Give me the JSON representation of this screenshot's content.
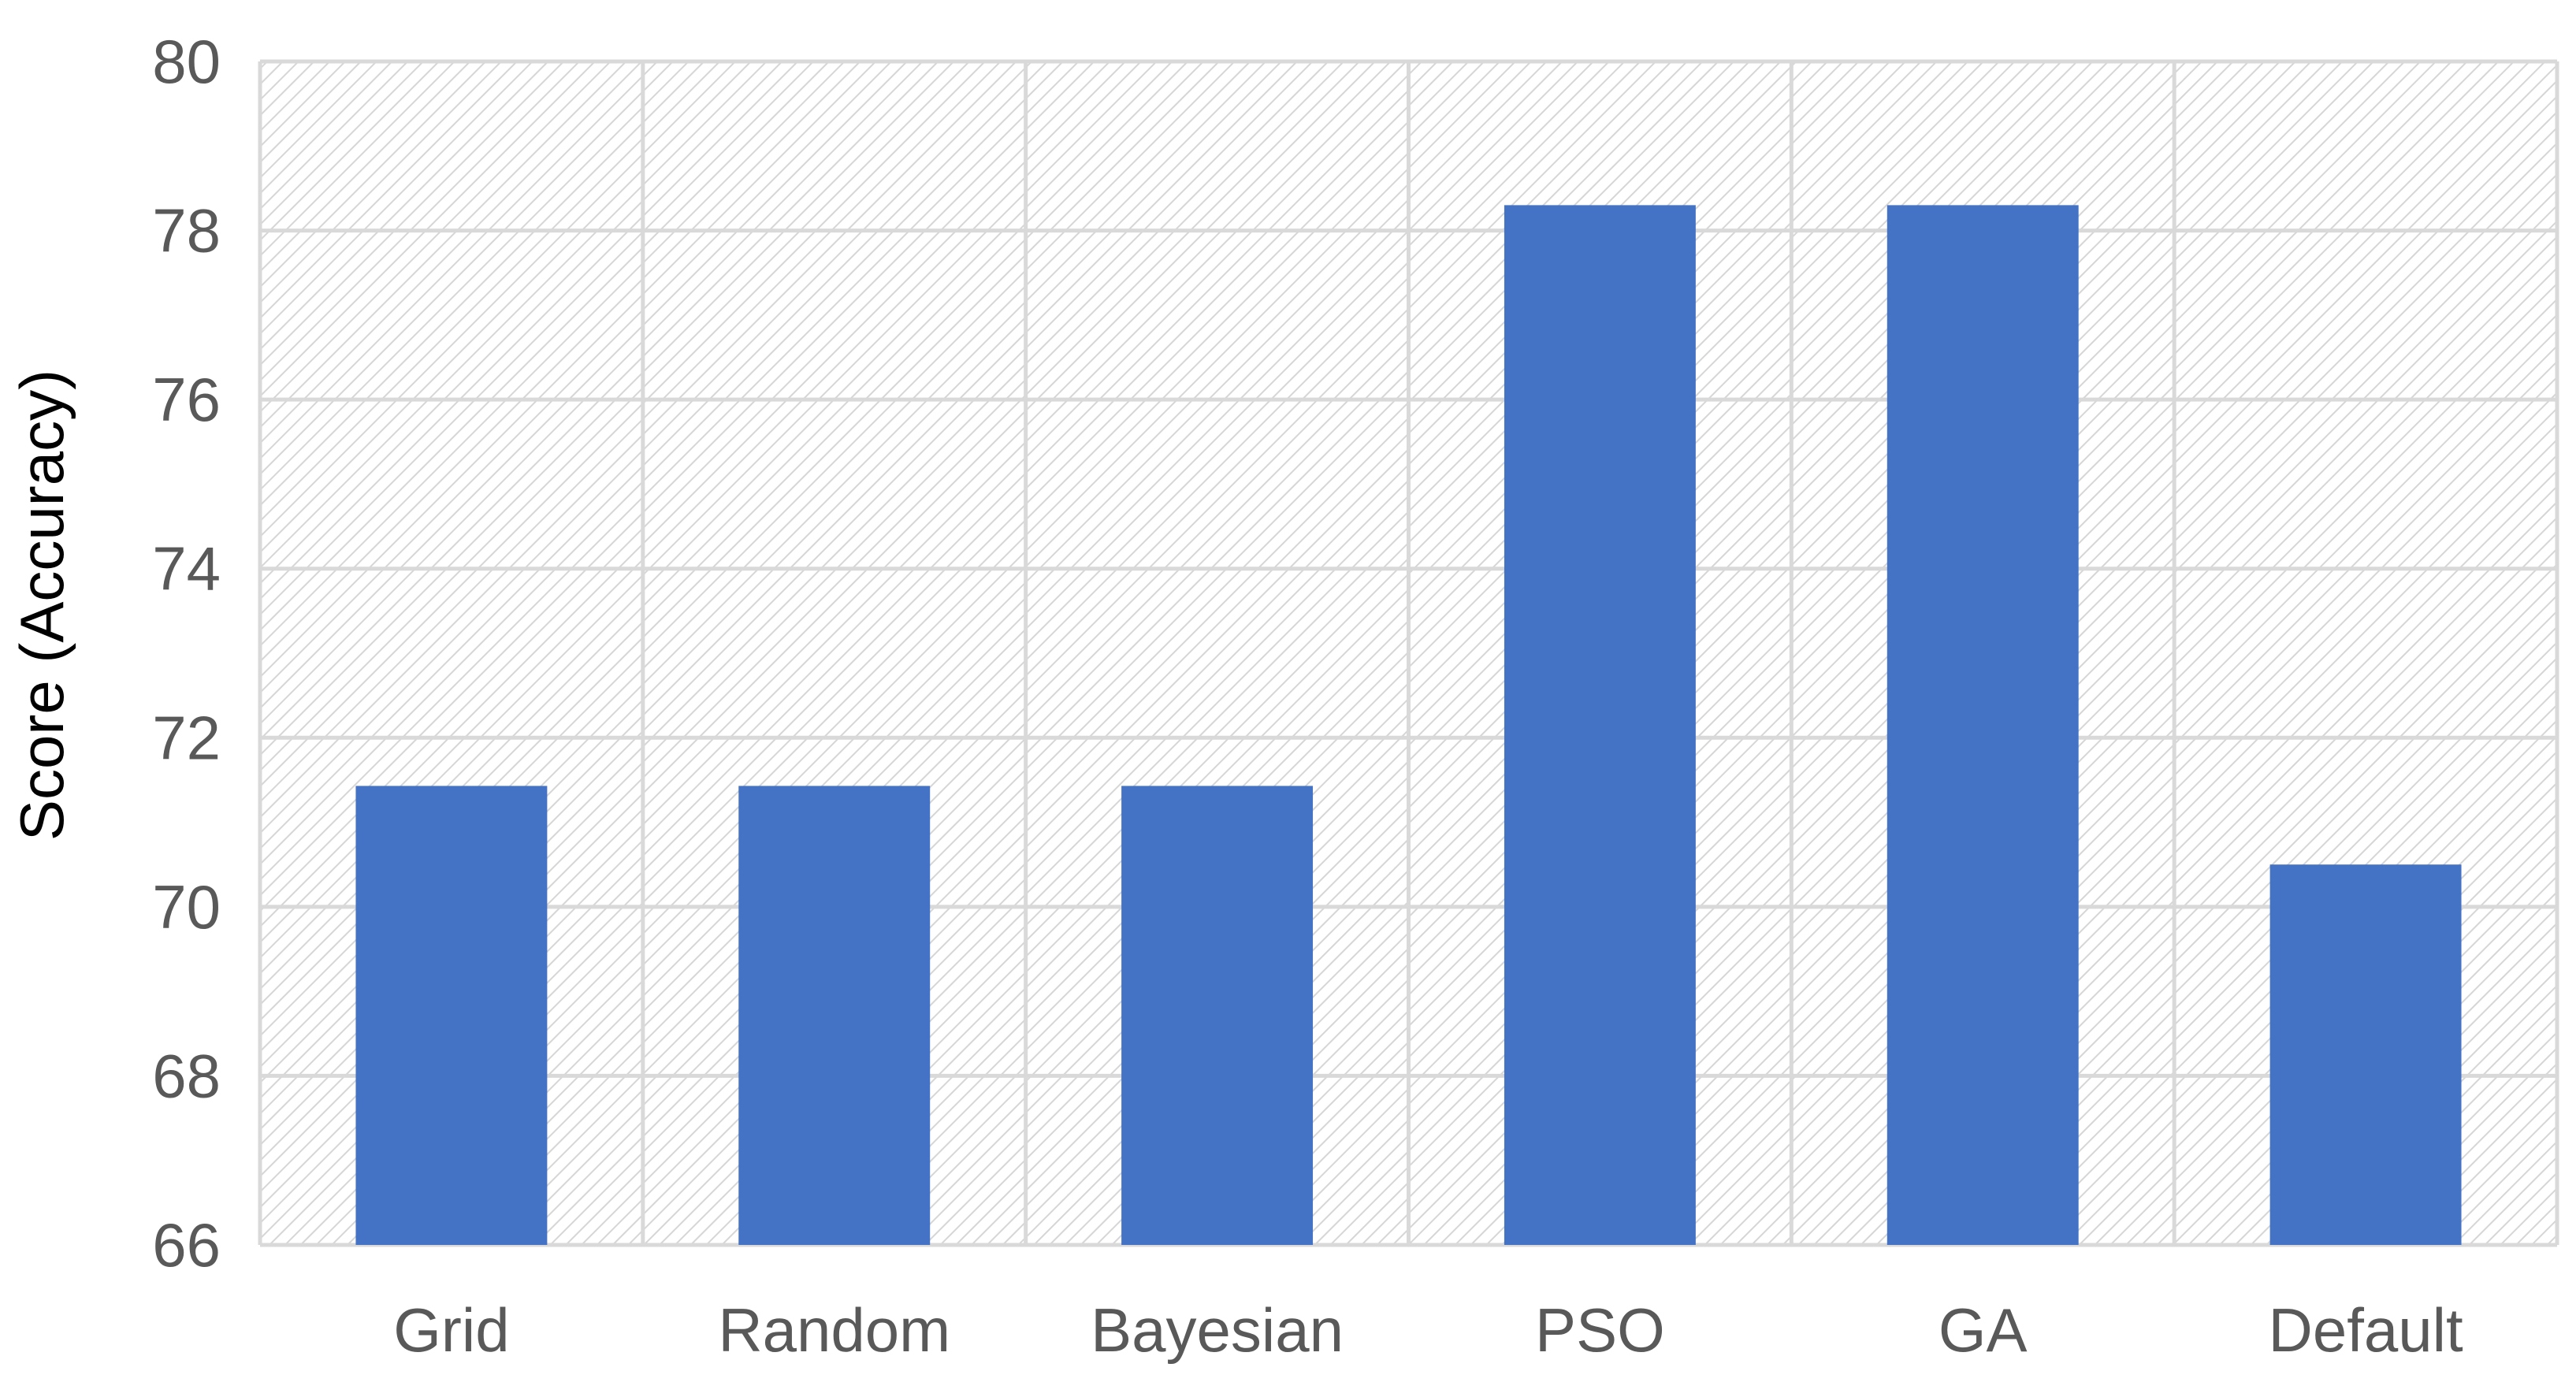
{
  "chart_data": {
    "type": "bar",
    "title": "",
    "xlabel": "",
    "ylabel": "Score (Accuracy)",
    "categories": [
      "Grid",
      "Random",
      "Bayesian",
      "PSO",
      "GA",
      "Default"
    ],
    "values": [
      71.43,
      71.43,
      71.43,
      78.3,
      78.3,
      70.5
    ],
    "ylim": [
      66,
      80
    ],
    "yticks": [
      "66",
      "68",
      "70",
      "72",
      "74",
      "76",
      "78",
      "80"
    ],
    "grid": true,
    "legend": "none",
    "background_pattern": "diagonal-hatch",
    "colors": {
      "bar": "#4472C4",
      "grid": "#D9D9D9",
      "hatch": "#D9D9D9",
      "tick_text": "#595959",
      "axis_title": "#000000"
    }
  }
}
